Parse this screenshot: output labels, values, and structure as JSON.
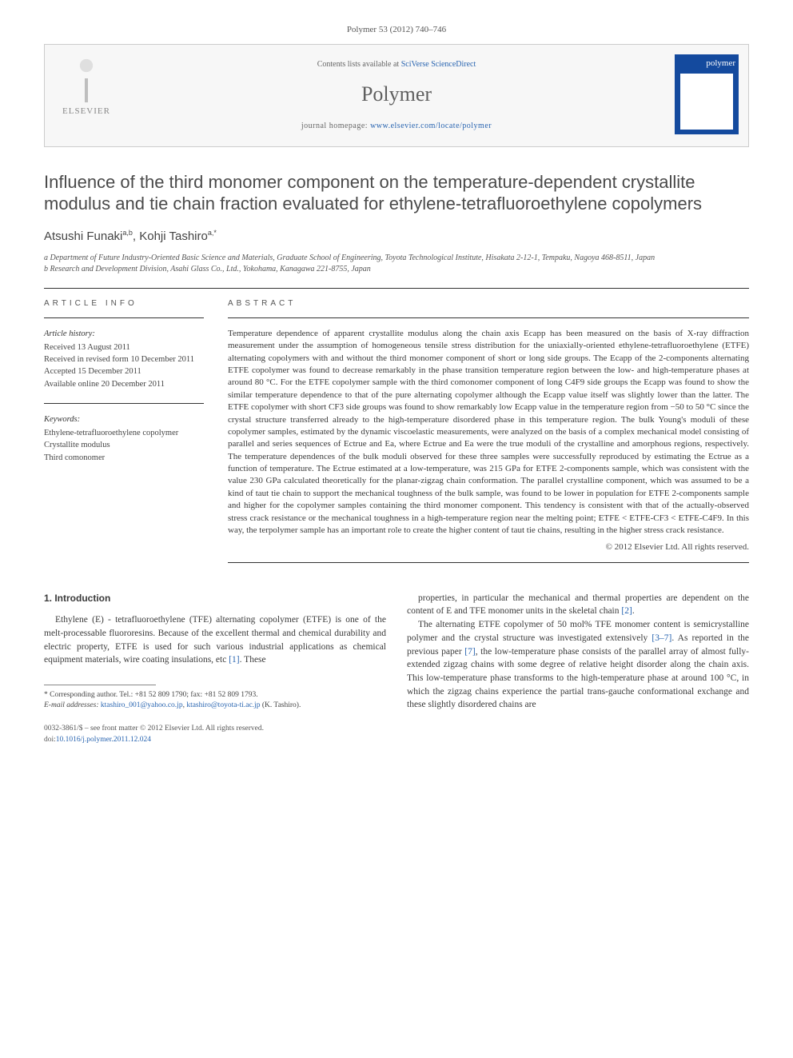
{
  "citation": "Polymer 53 (2012) 740–746",
  "banner": {
    "contents_prefix": "Contents lists available at ",
    "contents_link": "SciVerse ScienceDirect",
    "journal": "Polymer",
    "homepage_prefix": "journal homepage: ",
    "homepage_url": "www.elsevier.com/locate/polymer",
    "publisher_word": "ELSEVIER",
    "cover_word": "polymer"
  },
  "title": "Influence of the third monomer component on the temperature-dependent crystallite modulus and tie chain fraction evaluated for ethylene-tetrafluoroethylene copolymers",
  "authors": {
    "line": "Atsushi Funaki",
    "sup1": "a,b",
    "sep": ", Kohji Tashiro",
    "sup2": "a,*"
  },
  "affiliations": {
    "a": "a Department of Future Industry-Oriented Basic Science and Materials, Graduate School of Engineering, Toyota Technological Institute, Hisakata 2-12-1, Tempaku, Nagoya 468-8511, Japan",
    "b": "b Research and Development Division, Asahi Glass Co., Ltd., Yokohama, Kanagawa 221-8755, Japan"
  },
  "article_info": {
    "label": "ARTICLE INFO",
    "history_head": "Article history:",
    "received": "Received 13 August 2011",
    "revised": "Received in revised form 10 December 2011",
    "accepted": "Accepted 15 December 2011",
    "online": "Available online 20 December 2011",
    "keywords_head": "Keywords:",
    "kw1": "Ethylene-tetrafluoroethylene copolymer",
    "kw2": "Crystallite modulus",
    "kw3": "Third comonomer"
  },
  "abstract": {
    "label": "ABSTRACT",
    "text": "Temperature dependence of apparent crystallite modulus along the chain axis Ecapp has been measured on the basis of X-ray diffraction measurement under the assumption of homogeneous tensile stress distribution for the uniaxially-oriented ethylene-tetrafluoroethylene (ETFE) alternating copolymers with and without the third monomer component of short or long side groups. The Ecapp of the 2-components alternating ETFE copolymer was found to decrease remarkably in the phase transition temperature region between the low- and high-temperature phases at around 80 °C. For the ETFE copolymer sample with the third comonomer component of long C4F9 side groups the Ecapp was found to show the similar temperature dependence to that of the pure alternating copolymer although the Ecapp value itself was slightly lower than the latter. The ETFE copolymer with short CF3 side groups was found to show remarkably low Ecapp value in the temperature region from −50 to 50 °C since the crystal structure transferred already to the high-temperature disordered phase in this temperature region. The bulk Young's moduli of these copolymer samples, estimated by the dynamic viscoelastic measurements, were analyzed on the basis of a complex mechanical model consisting of parallel and series sequences of Ectrue and Ea, where Ectrue and Ea were the true moduli of the crystalline and amorphous regions, respectively. The temperature dependences of the bulk moduli observed for these three samples were successfully reproduced by estimating the Ectrue as a function of temperature. The Ectrue estimated at a low-temperature, was 215 GPa for ETFE 2-components sample, which was consistent with the value 230 GPa calculated theoretically for the planar-zigzag chain conformation. The parallel crystalline component, which was assumed to be a kind of taut tie chain to support the mechanical toughness of the bulk sample, was found to be lower in population for ETFE 2-components sample and higher for the copolymer samples containing the third monomer component. This tendency is consistent with that of the actually-observed stress crack resistance or the mechanical toughness in a high-temperature region near the melting point; ETFE < ETFE-CF3 < ETFE-C4F9. In this way, the terpolymer sample has an important role to create the higher content of taut tie chains, resulting in the higher stress crack resistance.",
    "copyright": "© 2012 Elsevier Ltd. All rights reserved."
  },
  "intro": {
    "heading": "1.  Introduction",
    "p1a": "Ethylene (E) - tetrafluoroethylene (TFE) alternating copolymer (ETFE) is one of the melt-processable fluororesins. Because of the excellent thermal and chemical durability and electric property, ETFE is used for such various industrial applications as chemical equipment materials, wire coating insulations, etc ",
    "p1_ref": "[1]",
    "p1b": ". These",
    "p2a": "properties, in particular the mechanical and thermal properties are dependent on the content of E and TFE monomer units in the skeletal chain ",
    "p2_ref": "[2]",
    "p2b": ".",
    "p3a": "The alternating ETFE copolymer of 50 mol% TFE monomer content is semicrystalline polymer and the crystal structure was investigated extensively ",
    "p3_ref1": "[3–7]",
    "p3b": ". As reported in the previous paper ",
    "p3_ref2": "[7]",
    "p3c": ", the low-temperature phase consists of the parallel array of almost fully-extended zigzag chains with some degree of relative height disorder along the chain axis. This low-temperature phase transforms to the high-temperature phase at around 100 °C, in which the zigzag chains experience the partial trans-gauche conformational exchange and these slightly disordered chains are"
  },
  "footnotes": {
    "corr": "* Corresponding author. Tel.: +81 52 809 1790; fax: +81 52 809 1793.",
    "email_label": "E-mail addresses: ",
    "email1": "ktashiro_001@yahoo.co.jp",
    "email_sep": ", ",
    "email2": "ktashiro@toyota-ti.ac.jp",
    "email_tail": " (K. Tashiro)."
  },
  "footer": {
    "line1": "0032-3861/$ – see front matter © 2012 Elsevier Ltd. All rights reserved.",
    "doi_label": "doi:",
    "doi": "10.1016/j.polymer.2011.12.024"
  }
}
